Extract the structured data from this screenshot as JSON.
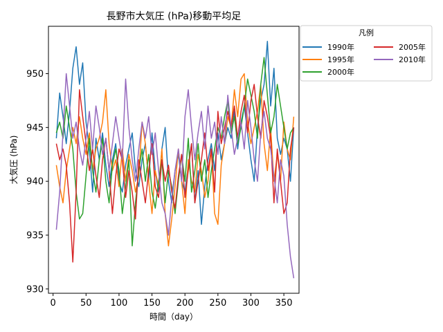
{
  "chart_data": {
    "type": "line",
    "title": "長野市大気圧 (hPa)移動平均足",
    "xlabel": "時間（day）",
    "ylabel": "大気圧 (hPa)",
    "xlim": [
      -7,
      373
    ],
    "ylim": [
      929.6,
      954.4
    ],
    "xticks": [
      0,
      50,
      100,
      150,
      200,
      250,
      300,
      350
    ],
    "yticks": [
      930,
      935,
      940,
      945,
      950
    ],
    "grid": false,
    "legend": {
      "title": "凡例",
      "placement": "outside upper-right",
      "columns": 2
    },
    "series": [
      {
        "name": "1990年",
        "color": "#1f77b4",
        "x": [
          5,
          10,
          15,
          20,
          25,
          30,
          35,
          40,
          45,
          50,
          55,
          60,
          65,
          70,
          75,
          80,
          85,
          90,
          95,
          100,
          105,
          110,
          115,
          120,
          125,
          130,
          135,
          140,
          145,
          150,
          155,
          160,
          165,
          170,
          175,
          180,
          185,
          190,
          195,
          200,
          205,
          210,
          215,
          220,
          225,
          230,
          235,
          240,
          245,
          250,
          255,
          260,
          265,
          270,
          275,
          280,
          285,
          290,
          295,
          300,
          305,
          310,
          315,
          320,
          325,
          330,
          335,
          340,
          345,
          350,
          355,
          360,
          365
        ],
        "values": [
          944.0,
          948.2,
          946.0,
          943.5,
          946.5,
          950.5,
          952.5,
          949.0,
          951.0,
          945.5,
          943.0,
          939.0,
          944.0,
          942.0,
          944.5,
          941.5,
          939.5,
          942.0,
          943.5,
          940.0,
          939.0,
          941.5,
          943.0,
          944.5,
          941.0,
          939.5,
          942.0,
          943.5,
          940.0,
          944.5,
          941.0,
          939.0,
          943.0,
          945.0,
          940.0,
          938.0,
          941.0,
          942.5,
          940.0,
          939.0,
          941.5,
          943.5,
          938.0,
          941.0,
          936.0,
          939.5,
          942.0,
          943.5,
          941.0,
          944.5,
          942.0,
          943.5,
          945.0,
          944.0,
          946.5,
          943.0,
          945.5,
          947.0,
          944.5,
          942.0,
          940.0,
          945.0,
          947.5,
          949.0,
          953.0,
          947.0,
          950.5,
          944.0,
          942.5,
          944.0,
          943.0,
          940.0,
          945.0
        ]
      },
      {
        "name": "1995年",
        "color": "#ff7f0e",
        "x": [
          5,
          10,
          15,
          20,
          25,
          30,
          35,
          40,
          45,
          50,
          55,
          60,
          65,
          70,
          75,
          80,
          85,
          90,
          95,
          100,
          105,
          110,
          115,
          120,
          125,
          130,
          135,
          140,
          145,
          150,
          155,
          160,
          165,
          170,
          175,
          180,
          185,
          190,
          195,
          200,
          205,
          210,
          215,
          220,
          225,
          230,
          235,
          240,
          245,
          250,
          255,
          260,
          265,
          270,
          275,
          280,
          285,
          290,
          295,
          300,
          305,
          310,
          315,
          320,
          325,
          330,
          335,
          340,
          345,
          350,
          355,
          360,
          365
        ],
        "values": [
          941.5,
          939.5,
          938.0,
          941.0,
          943.0,
          945.0,
          943.5,
          946.0,
          944.0,
          942.5,
          944.5,
          941.0,
          943.0,
          944.0,
          945.5,
          948.5,
          943.5,
          941.0,
          942.0,
          939.5,
          943.0,
          940.0,
          942.5,
          941.0,
          939.0,
          940.5,
          945.5,
          943.5,
          940.0,
          937.0,
          941.0,
          939.5,
          943.0,
          937.0,
          934.0,
          936.5,
          939.5,
          943.0,
          940.0,
          937.0,
          942.0,
          940.0,
          939.0,
          942.5,
          941.0,
          938.5,
          940.0,
          943.0,
          937.0,
          936.0,
          941.5,
          943.5,
          946.0,
          945.0,
          948.5,
          946.0,
          949.5,
          950.0,
          945.5,
          943.5,
          945.0,
          946.5,
          949.0,
          943.5,
          941.0,
          945.0,
          940.0,
          942.5,
          940.0,
          945.5,
          943.0,
          942.0,
          946.0
        ]
      },
      {
        "name": "2000年",
        "color": "#2ca02c",
        "x": [
          5,
          10,
          15,
          20,
          25,
          30,
          35,
          40,
          45,
          50,
          55,
          60,
          65,
          70,
          75,
          80,
          85,
          90,
          95,
          100,
          105,
          110,
          115,
          120,
          125,
          130,
          135,
          140,
          145,
          150,
          155,
          160,
          165,
          170,
          175,
          180,
          185,
          190,
          195,
          200,
          205,
          210,
          215,
          220,
          225,
          230,
          235,
          240,
          245,
          250,
          255,
          260,
          265,
          270,
          275,
          280,
          285,
          290,
          295,
          300,
          305,
          310,
          315,
          320,
          325,
          330,
          335,
          340,
          345,
          350,
          355,
          360,
          365
        ],
        "values": [
          944.5,
          945.5,
          944.0,
          947.0,
          945.0,
          943.0,
          939.0,
          936.5,
          937.0,
          940.5,
          944.0,
          941.0,
          939.0,
          942.0,
          944.0,
          940.0,
          938.0,
          941.5,
          943.0,
          941.0,
          937.0,
          939.5,
          942.0,
          934.0,
          938.0,
          941.0,
          943.0,
          940.0,
          942.5,
          939.0,
          937.5,
          940.0,
          942.0,
          938.0,
          941.0,
          939.5,
          937.0,
          940.0,
          942.5,
          940.0,
          944.0,
          939.0,
          941.0,
          943.5,
          940.0,
          942.0,
          938.5,
          941.0,
          943.0,
          945.0,
          944.0,
          946.0,
          947.5,
          944.5,
          946.0,
          943.5,
          945.0,
          947.0,
          949.5,
          948.0,
          946.5,
          944.0,
          949.0,
          951.5,
          948.0,
          944.5,
          946.0,
          949.0,
          947.0,
          945.0,
          943.0,
          944.5,
          945.0
        ]
      },
      {
        "name": "2005年",
        "color": "#d62728",
        "x": [
          5,
          10,
          15,
          20,
          25,
          30,
          35,
          40,
          45,
          50,
          55,
          60,
          65,
          70,
          75,
          80,
          85,
          90,
          95,
          100,
          105,
          110,
          115,
          120,
          125,
          130,
          135,
          140,
          145,
          150,
          155,
          160,
          165,
          170,
          175,
          180,
          185,
          190,
          195,
          200,
          205,
          210,
          215,
          220,
          225,
          230,
          235,
          240,
          245,
          250,
          255,
          260,
          265,
          270,
          275,
          280,
          285,
          290,
          295,
          300,
          305,
          310,
          315,
          320,
          325,
          330,
          335,
          340,
          345,
          350,
          355,
          360,
          365
        ],
        "values": [
          943.5,
          942.0,
          943.0,
          941.5,
          938.0,
          932.5,
          939.0,
          948.5,
          946.0,
          943.5,
          941.0,
          943.0,
          940.5,
          938.5,
          942.0,
          944.0,
          941.0,
          937.0,
          940.5,
          943.0,
          942.0,
          938.5,
          941.0,
          939.0,
          936.5,
          942.0,
          940.0,
          938.0,
          941.0,
          943.5,
          939.5,
          938.5,
          942.0,
          940.0,
          941.5,
          939.0,
          937.5,
          940.5,
          942.5,
          938.5,
          941.0,
          943.5,
          938.0,
          940.0,
          942.0,
          944.5,
          941.0,
          943.0,
          939.0,
          946.5,
          943.5,
          945.0,
          946.5,
          945.0,
          947.0,
          944.0,
          946.5,
          948.0,
          944.5,
          947.5,
          949.0,
          946.0,
          944.0,
          947.5,
          946.0,
          944.0,
          938.0,
          943.0,
          940.0,
          937.0,
          938.0,
          943.0,
          945.0
        ]
      },
      {
        "name": "2010年",
        "color": "#9467bd",
        "x": [
          5,
          10,
          15,
          20,
          25,
          30,
          35,
          40,
          45,
          50,
          55,
          60,
          65,
          70,
          75,
          80,
          85,
          90,
          95,
          100,
          105,
          110,
          115,
          120,
          125,
          130,
          135,
          140,
          145,
          150,
          155,
          160,
          165,
          170,
          175,
          180,
          185,
          190,
          195,
          200,
          205,
          210,
          215,
          220,
          225,
          230,
          235,
          240,
          245,
          250,
          255,
          260,
          265,
          270,
          275,
          280,
          285,
          290,
          295,
          300,
          305,
          310,
          315,
          320,
          325,
          330,
          335,
          340,
          345,
          350,
          355,
          360,
          365
        ],
        "values": [
          935.5,
          939.0,
          944.5,
          950.0,
          947.0,
          944.0,
          945.5,
          943.0,
          941.5,
          944.0,
          946.5,
          943.0,
          947.0,
          945.0,
          942.5,
          944.0,
          941.0,
          943.5,
          946.0,
          944.0,
          942.0,
          949.5,
          945.0,
          942.0,
          940.0,
          943.0,
          945.5,
          944.0,
          946.0,
          942.5,
          944.5,
          941.0,
          938.0,
          937.0,
          935.0,
          938.5,
          941.0,
          943.0,
          940.0,
          946.0,
          948.5,
          945.0,
          942.0,
          944.5,
          946.5,
          943.0,
          947.0,
          944.0,
          945.5,
          942.5,
          946.0,
          943.5,
          948.0,
          945.0,
          942.5,
          944.0,
          945.5,
          943.0,
          947.5,
          945.0,
          942.0,
          940.0,
          944.5,
          946.5,
          944.0,
          943.0,
          940.5,
          938.0,
          942.0,
          940.5,
          936.0,
          933.0,
          931.0
        ]
      }
    ]
  }
}
